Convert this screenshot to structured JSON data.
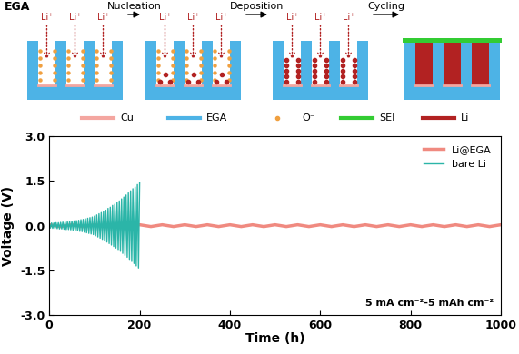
{
  "diagram": {
    "title": "EGA",
    "steps": [
      "Nucleation",
      "Deposition",
      "Cycling"
    ],
    "ion_label": "Li⁺",
    "legend": [
      {
        "name": "Cu",
        "color": "#f4a6a0"
      },
      {
        "name": "EGA",
        "color": "#4db3e6"
      },
      {
        "name": "O⁻",
        "color": "#f0a040"
      },
      {
        "name": "SEI",
        "color": "#33cc33"
      },
      {
        "name": "Li",
        "color": "#b22222"
      }
    ]
  },
  "chart_data": {
    "type": "line",
    "xlabel": "Time (h)",
    "ylabel": "Voltage (V)",
    "annotation": "5 mA cm⁻²-5 mAh cm⁻²",
    "xlim": [
      0,
      1000
    ],
    "ylim": [
      -3,
      3
    ],
    "xticks": [
      0,
      200,
      400,
      600,
      800,
      1000
    ],
    "yticks": [
      {
        "value": -3,
        "label": "-3.0"
      },
      {
        "value": -1.5,
        "label": "-1.5"
      },
      {
        "value": 0,
        "label": "0.0"
      },
      {
        "value": 1.5,
        "label": "1.5"
      },
      {
        "value": 3,
        "label": "3.0"
      }
    ],
    "legend": "upper right",
    "series": [
      {
        "name": "Li@EGA",
        "color": "#f08a80",
        "x": [
          0,
          25,
          50,
          75,
          100,
          125,
          150,
          175,
          200,
          225,
          250,
          275,
          300,
          325,
          350,
          375,
          400,
          425,
          450,
          475,
          500,
          525,
          550,
          575,
          600,
          625,
          650,
          675,
          700,
          725,
          750,
          775,
          800,
          825,
          850,
          875,
          900,
          925,
          950,
          975,
          1000
        ],
        "values": [
          0.03,
          -0.03,
          0.03,
          -0.03,
          0.03,
          -0.03,
          0.03,
          -0.03,
          0.03,
          -0.03,
          0.03,
          -0.03,
          0.03,
          -0.03,
          0.03,
          -0.03,
          0.03,
          -0.03,
          0.03,
          -0.03,
          0.03,
          -0.03,
          0.03,
          -0.03,
          0.03,
          -0.03,
          0.03,
          -0.03,
          0.03,
          -0.03,
          0.03,
          -0.03,
          0.03,
          -0.03,
          0.03,
          -0.03,
          0.03,
          -0.03,
          0.03,
          -0.03,
          0.03
        ]
      },
      {
        "name": "bare Li",
        "color": "#2bb5a8",
        "x": [
          0,
          2.5,
          5,
          7.5,
          10,
          12.5,
          15,
          17.5,
          20,
          22.5,
          25,
          27.5,
          30,
          32.5,
          35,
          37.5,
          40,
          42.5,
          45,
          47.5,
          50,
          52.5,
          55,
          57.5,
          60,
          62.5,
          65,
          67.5,
          70,
          72.5,
          75,
          77.5,
          80,
          82.5,
          85,
          87.5,
          90,
          92.5,
          95,
          97.5,
          100,
          102.5,
          105,
          107.5,
          110,
          112.5,
          115,
          117.5,
          120,
          122.5,
          125,
          127.5,
          130,
          132.5,
          135,
          137.5,
          140,
          142.5,
          145,
          147.5,
          150,
          152.5,
          155,
          157.5,
          160,
          162.5,
          165,
          167.5,
          170,
          172.5,
          175,
          177.5,
          180,
          182.5,
          185,
          187.5,
          190,
          192.5,
          195,
          197.5,
          200
        ],
        "values": [
          0.08,
          -0.08,
          0.09,
          -0.09,
          0.09,
          -0.1,
          0.1,
          -0.1,
          0.1,
          -0.11,
          0.11,
          -0.11,
          0.12,
          -0.12,
          0.12,
          -0.13,
          0.13,
          -0.13,
          0.14,
          -0.14,
          0.15,
          -0.15,
          0.16,
          -0.16,
          0.17,
          -0.17,
          0.18,
          -0.19,
          0.2,
          -0.2,
          0.21,
          -0.22,
          0.23,
          -0.24,
          0.25,
          -0.26,
          0.27,
          -0.28,
          0.29,
          -0.3,
          0.32,
          -0.34,
          0.36,
          -0.38,
          0.4,
          -0.42,
          0.44,
          -0.46,
          0.48,
          -0.5,
          0.52,
          -0.55,
          0.58,
          -0.6,
          0.62,
          -0.65,
          0.68,
          -0.7,
          0.72,
          -0.75,
          0.78,
          -0.8,
          0.83,
          -0.86,
          0.9,
          -0.93,
          0.96,
          -1.0,
          1.03,
          -1.06,
          1.1,
          -1.13,
          1.17,
          -1.2,
          1.24,
          -1.27,
          1.3,
          -1.35,
          1.38,
          -1.42,
          1.45
        ]
      }
    ]
  }
}
